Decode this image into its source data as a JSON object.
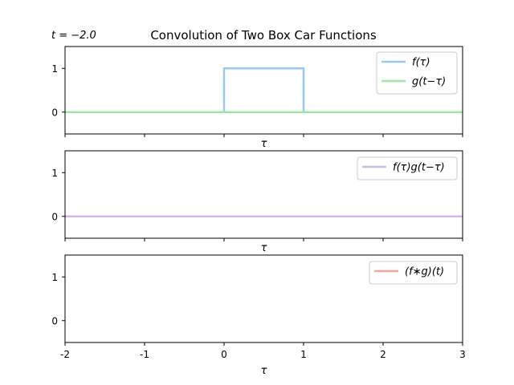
{
  "figure": {
    "title": "Convolution of Two Box Car Functions",
    "time_label": "t = −2.0"
  },
  "chart_data": [
    {
      "type": "line",
      "panel": "top",
      "xlabel": "τ",
      "xlim": [
        -2,
        3
      ],
      "ylim": [
        -0.5,
        1.5
      ],
      "yticks": [
        0,
        1
      ],
      "xticks": [
        -2,
        -1,
        0,
        1,
        2,
        3
      ],
      "show_x_tick_labels": false,
      "legend_position": "top-right",
      "series": [
        {
          "name": "f(τ)",
          "color": "#99c9f2",
          "x": [
            -2,
            0,
            0,
            1,
            1,
            3
          ],
          "y": [
            0,
            0,
            1,
            1,
            0,
            0
          ]
        },
        {
          "name": "g(t−τ)",
          "color": "#a0e6a8",
          "x": [
            -2,
            3
          ],
          "y": [
            0,
            0
          ]
        }
      ]
    },
    {
      "type": "line",
      "panel": "middle",
      "xlabel": "τ",
      "xlim": [
        -2,
        3
      ],
      "ylim": [
        -0.5,
        1.5
      ],
      "yticks": [
        0,
        1
      ],
      "xticks": [
        -2,
        -1,
        0,
        1,
        2,
        3
      ],
      "show_x_tick_labels": false,
      "legend_position": "top-right",
      "series": [
        {
          "name": "f(τ)g(t−τ)",
          "color": "#cdb8f0",
          "x": [
            -2,
            3
          ],
          "y": [
            0,
            0
          ]
        }
      ]
    },
    {
      "type": "line",
      "panel": "bottom",
      "xlabel": "τ",
      "xlim": [
        -2,
        3
      ],
      "ylim": [
        -0.5,
        1.5
      ],
      "yticks": [
        0,
        1
      ],
      "xticks": [
        -2,
        -1,
        0,
        1,
        2,
        3
      ],
      "xticklabels": [
        "-2",
        "-1",
        "0",
        "1",
        "2",
        "3"
      ],
      "show_x_tick_labels": true,
      "legend_position": "top-right",
      "series": [
        {
          "name": "(f∗g)(t)",
          "color": "#f5a39b",
          "x": [],
          "y": []
        }
      ]
    }
  ]
}
